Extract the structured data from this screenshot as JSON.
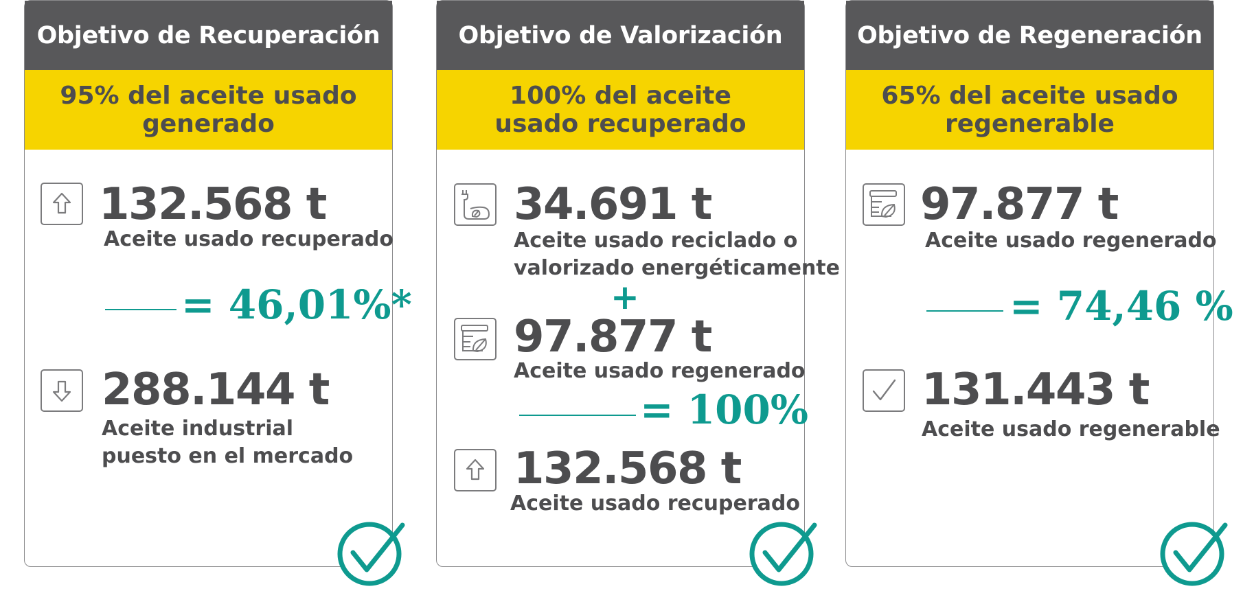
{
  "colors": {
    "header_bg": "#58585a",
    "band_bg": "#f6d400",
    "accent_teal": "#0e9a8f",
    "text": "#4d4d4f"
  },
  "cards": [
    {
      "title": "Objetivo de Recuperación",
      "target": "95% del aceite usado generado",
      "metric_top": {
        "icon": "arrow-up-icon",
        "value": "132.568 t",
        "label": "Aceite usado recuperado"
      },
      "ratio": "= 46,01%*",
      "metric_bottom": {
        "icon": "arrow-down-icon",
        "value": "288.144 t",
        "label_line1": "Aceite industrial",
        "label_line2": "puesto en el mercado"
      },
      "status_icon": "checkmark-circle-icon"
    },
    {
      "title": "Objetivo de Valorización",
      "target": "100% del aceite usado recuperado",
      "metric_1": {
        "icon": "energy-recycle-icon",
        "value": "34.691 t",
        "label_line1": "Aceite usado reciclado o",
        "label_line2": "valorizado energéticamente"
      },
      "operator": "+",
      "metric_2": {
        "icon": "regenerated-barrel-icon",
        "value": "97.877 t",
        "label": "Aceite usado regenerado"
      },
      "ratio": "= 100%",
      "metric_3": {
        "icon": "arrow-up-icon",
        "value": "132.568 t",
        "label": "Aceite usado recuperado"
      },
      "status_icon": "checkmark-circle-icon"
    },
    {
      "title": "Objetivo de Regeneración",
      "target": "65% del aceite usado regenerable",
      "metric_top": {
        "icon": "regenerated-barrel-icon",
        "value": "97.877 t",
        "label": "Aceite usado regenerado"
      },
      "ratio": "= 74,46 %",
      "metric_bottom": {
        "icon": "checkbox-check-icon",
        "value": "131.443 t",
        "label": "Aceite usado regenerable"
      },
      "status_icon": "checkmark-circle-icon"
    }
  ]
}
